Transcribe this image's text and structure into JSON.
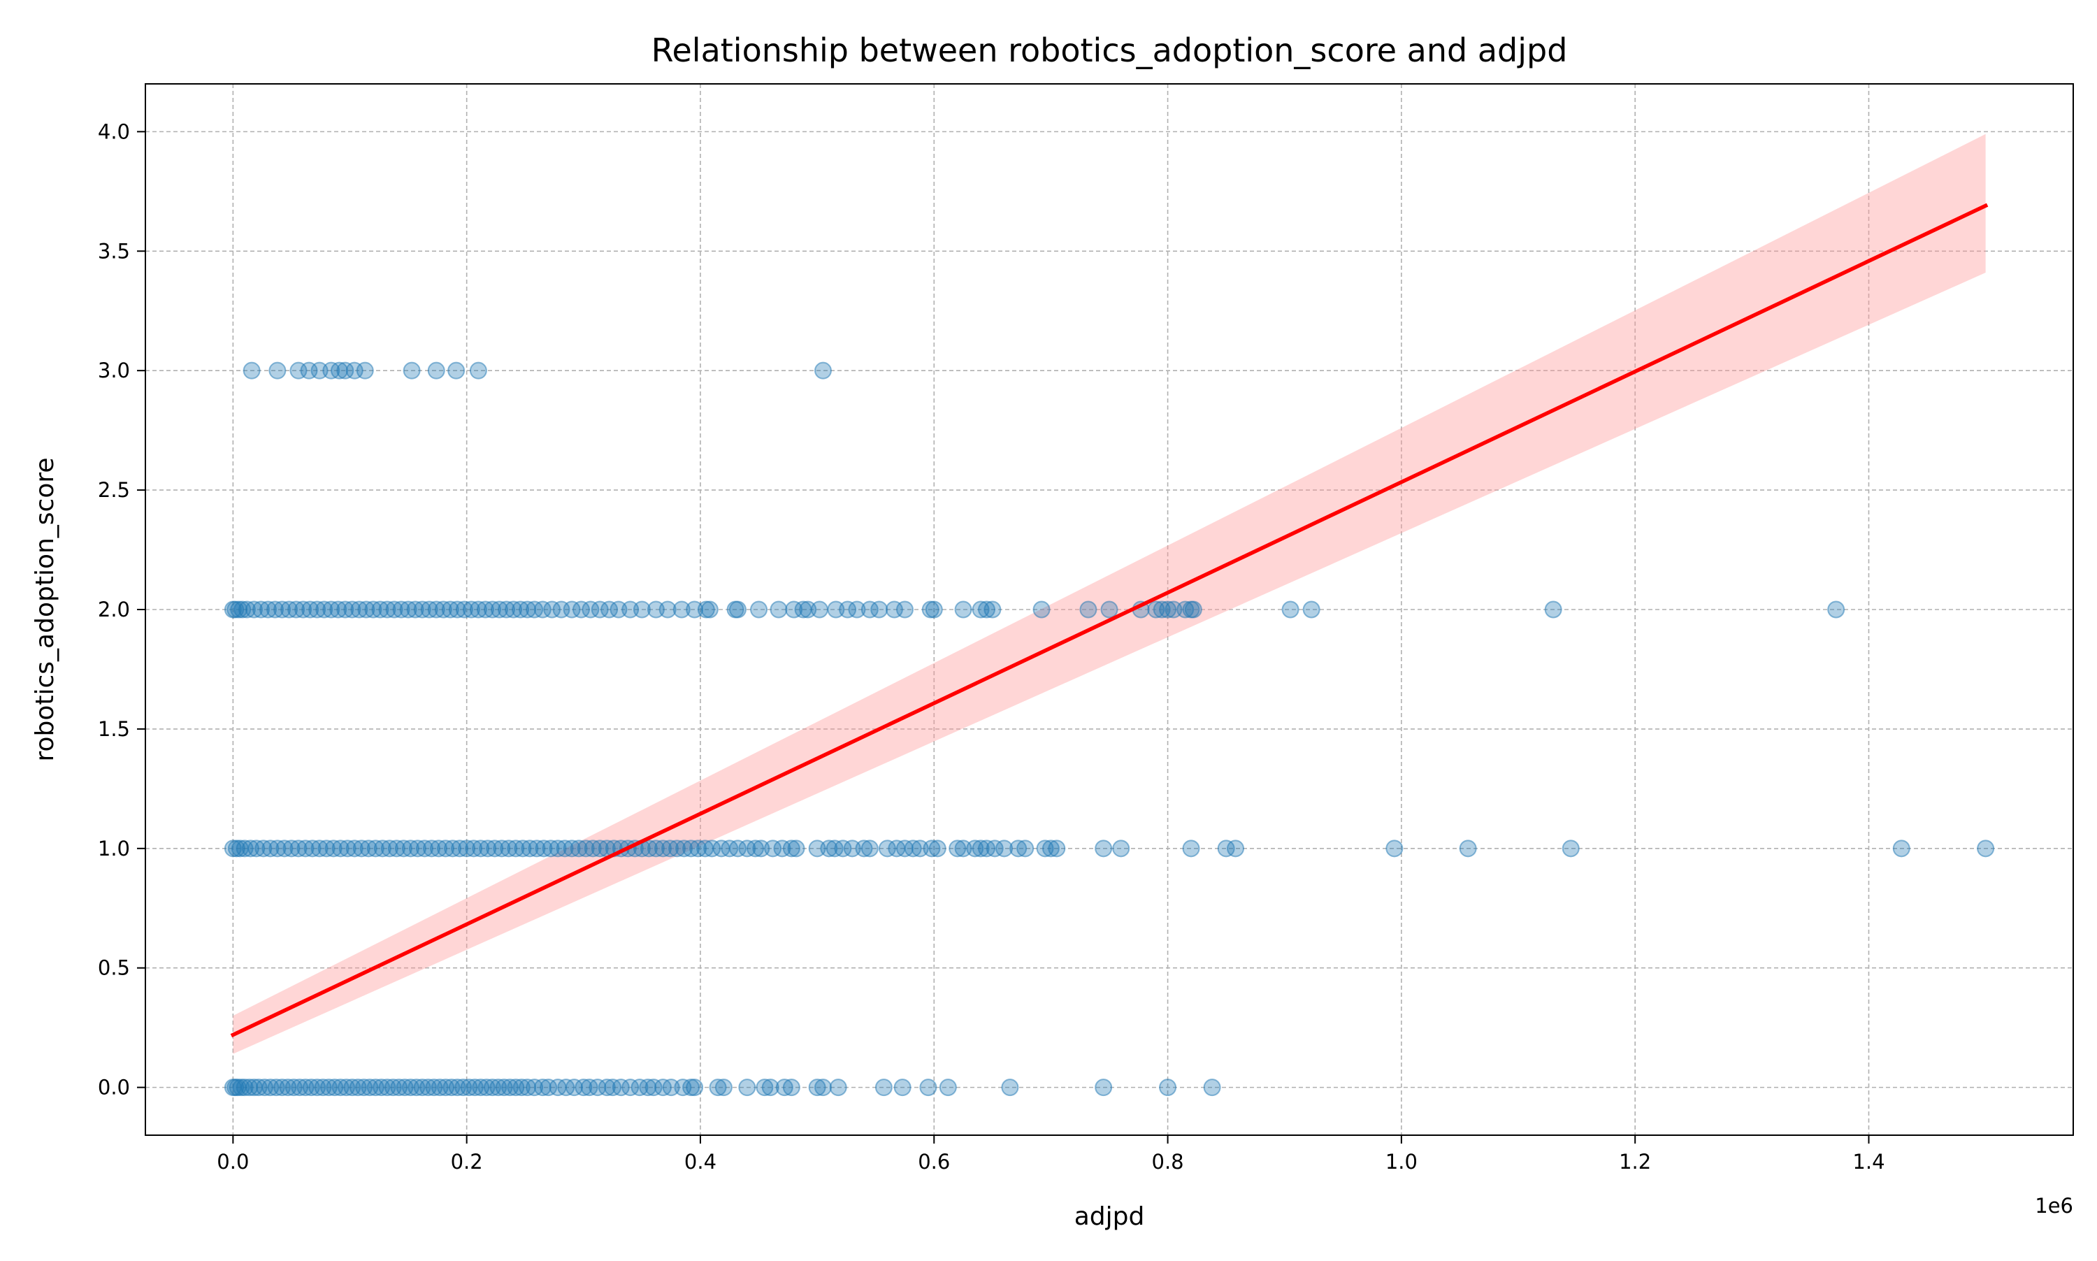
{
  "chart_data": {
    "type": "scatter",
    "title": "Relationship between robotics_adoption_score and adjpd",
    "xlabel": "adjpd",
    "ylabel": "robotics_adoption_score",
    "x_offset_text": "1e6",
    "xlim": [
      -75000,
      1575000
    ],
    "ylim": [
      -0.2,
      4.2
    ],
    "grid": true,
    "x_ticks": [
      0,
      200000,
      400000,
      600000,
      800000,
      1000000,
      1200000,
      1400000
    ],
    "x_tick_labels": [
      "0.0",
      "0.2",
      "0.4",
      "0.6",
      "0.8",
      "1.0",
      "1.2",
      "1.4"
    ],
    "y_ticks": [
      0,
      0.5,
      1,
      1.5,
      2,
      2.5,
      3,
      3.5,
      4
    ],
    "y_tick_labels": [
      "0.0",
      "0.5",
      "1.0",
      "1.5",
      "2.0",
      "2.5",
      "3.0",
      "3.5",
      "4.0"
    ],
    "colors": {
      "points": "#1f77b4",
      "fit_line": "#ff0000",
      "confidence_band": "#ff9999",
      "grid": "#b0b0b0"
    },
    "regression": {
      "x": [
        0,
        1500000
      ],
      "y": [
        0.22,
        3.69
      ],
      "ci_lower": [
        0.14,
        3.41
      ],
      "ci_upper": [
        0.3,
        3.99
      ]
    },
    "series": [
      {
        "y": 3,
        "x": [
          16000,
          38000,
          56000,
          65000,
          74000,
          84000,
          91000,
          96000,
          104000,
          113000,
          153000,
          174000,
          191000,
          210000,
          505000
        ]
      },
      {
        "y": 2,
        "x": [
          0,
          2000,
          5000,
          8000,
          12000,
          18000,
          24000,
          30000,
          36000,
          42000,
          48000,
          54000,
          60000,
          66000,
          72000,
          78000,
          84000,
          90000,
          96000,
          102000,
          108000,
          114000,
          120000,
          126000,
          132000,
          138000,
          144000,
          150000,
          156000,
          162000,
          168000,
          174000,
          180000,
          186000,
          192000,
          198000,
          204000,
          210000,
          216000,
          222000,
          228000,
          234000,
          240000,
          246000,
          252000,
          258000,
          265000,
          273000,
          281000,
          290000,
          298000,
          306000,
          314000,
          322000,
          330000,
          340000,
          350000,
          362000,
          372000,
          384000,
          395000,
          405000,
          408000,
          430000,
          432000,
          450000,
          467000,
          480000,
          488000,
          492000,
          502000,
          516000,
          526000,
          534000,
          545000,
          553000,
          566000,
          575000,
          597000,
          600000,
          625000,
          640000,
          645000,
          650000,
          692000,
          732000,
          750000,
          777000,
          790000,
          795000,
          800000,
          805000,
          815000,
          820000,
          822000,
          905000,
          923000,
          1130000,
          1372000
        ]
      },
      {
        "y": 1,
        "x": [
          0,
          3000,
          6000,
          10000,
          15000,
          20000,
          26000,
          32000,
          38000,
          44000,
          50000,
          56000,
          62000,
          68000,
          74000,
          80000,
          86000,
          92000,
          98000,
          104000,
          110000,
          116000,
          122000,
          128000,
          134000,
          140000,
          146000,
          152000,
          158000,
          164000,
          170000,
          176000,
          182000,
          188000,
          194000,
          200000,
          206000,
          212000,
          218000,
          224000,
          230000,
          236000,
          242000,
          248000,
          254000,
          260000,
          266000,
          272000,
          278000,
          284000,
          290000,
          296000,
          302000,
          308000,
          314000,
          320000,
          326000,
          332000,
          338000,
          344000,
          350000,
          356000,
          362000,
          368000,
          374000,
          380000,
          386000,
          392000,
          398000,
          404000,
          410000,
          418000,
          425000,
          432000,
          440000,
          447000,
          452000,
          462000,
          470000,
          478000,
          482000,
          500000,
          510000,
          515000,
          522000,
          530000,
          540000,
          545000,
          560000,
          568000,
          575000,
          582000,
          588000,
          598000,
          603000,
          620000,
          625000,
          635000,
          640000,
          645000,
          652000,
          660000,
          672000,
          678000,
          695000,
          700000,
          705000,
          745000,
          760000,
          820000,
          850000,
          858000,
          994000,
          1057000,
          1145000,
          1428000,
          1500000
        ]
      },
      {
        "y": 0,
        "x": [
          0,
          2000,
          4000,
          7000,
          10000,
          14000,
          18000,
          22000,
          27000,
          32000,
          37000,
          42000,
          47000,
          52000,
          57000,
          62000,
          67000,
          72000,
          77000,
          82000,
          87000,
          92000,
          97000,
          102000,
          107000,
          112000,
          117000,
          122000,
          127000,
          132000,
          137000,
          142000,
          147000,
          152000,
          157000,
          162000,
          167000,
          172000,
          177000,
          182000,
          187000,
          192000,
          197000,
          202000,
          207000,
          212000,
          217000,
          222000,
          227000,
          232000,
          237000,
          242000,
          247000,
          252000,
          258000,
          265000,
          270000,
          278000,
          285000,
          292000,
          300000,
          305000,
          312000,
          320000,
          325000,
          332000,
          340000,
          348000,
          355000,
          360000,
          368000,
          375000,
          385000,
          392000,
          395000,
          415000,
          420000,
          440000,
          455000,
          460000,
          472000,
          478000,
          500000,
          505000,
          518000,
          557000,
          573000,
          595000,
          612000,
          665000,
          745000,
          800000,
          838000
        ]
      }
    ]
  }
}
